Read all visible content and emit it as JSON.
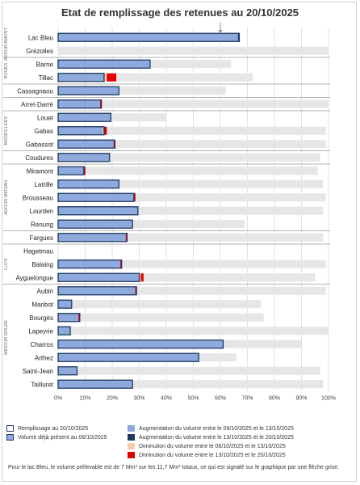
{
  "chart_data": {
    "type": "bar",
    "title": "Etat de remplissage des retenues au 20/10/2025",
    "xlim": [
      0,
      100
    ],
    "x_ticks": [
      "0%",
      "10%",
      "20%",
      "30%",
      "40%",
      "50%",
      "60%",
      "70%",
      "80%",
      "90%",
      "100%"
    ],
    "grid": "vertical",
    "legend_position": "bottom",
    "colors": {
      "present_fill": "#8ea9db",
      "outline": "#1f3864",
      "capacity": "#e6e6e6",
      "increase_1": "#8ea9db",
      "increase_2": "#1f3864",
      "decrease_1": "#f8cbad",
      "decrease_2": "#e00000"
    },
    "groups": [
      {
        "name": "ADOUR AMONT",
        "rows": [
          {
            "name": "Lac Bleu",
            "present": 66.5,
            "filling": 67,
            "capacity": 0,
            "inc1": 0,
            "inc2": 0.6,
            "dec1": 0,
            "dec2": 0
          },
          {
            "name": "Grézolles",
            "present": 0,
            "filling": 0,
            "capacity": 100,
            "inc1": 0,
            "inc2": 0,
            "dec1": 0,
            "dec2": 0
          }
        ]
      },
      {
        "name": "BOUES",
        "rows": [
          {
            "name": "Barne",
            "present": 34,
            "filling": 34,
            "capacity": 64,
            "inc1": 0,
            "inc2": 0,
            "dec1": 0,
            "dec2": 0
          },
          {
            "name": "Tillac",
            "present": 17,
            "filling": 17,
            "capacity": 72,
            "inc1": 0,
            "inc2": 0,
            "dec1": 1,
            "dec2": 3.5
          }
        ]
      },
      {
        "name": "",
        "rows": [
          {
            "name": "Cassagnaou",
            "present": 22.5,
            "filling": 22.5,
            "capacity": 62,
            "inc1": 0,
            "inc2": 0,
            "dec1": 0,
            "dec2": 0
          }
        ]
      },
      {
        "name": "",
        "rows": [
          {
            "name": "Arret-Darré",
            "present": 15.5,
            "filling": 16,
            "capacity": 100,
            "inc1": 0,
            "inc2": 0,
            "dec1": 0,
            "dec2": 0.6
          }
        ]
      },
      {
        "name": "BAÏSES-LEES",
        "rows": [
          {
            "name": "Louet",
            "present": 19.5,
            "filling": 19.5,
            "capacity": 40,
            "inc1": 0,
            "inc2": 0,
            "dec1": 0,
            "dec2": 0
          },
          {
            "name": "Gabas",
            "present": 16.5,
            "filling": 17,
            "capacity": 99,
            "inc1": 0,
            "inc2": 0,
            "dec1": 0.5,
            "dec2": 1
          },
          {
            "name": "Gabassot",
            "present": 20.5,
            "filling": 21,
            "capacity": 99,
            "inc1": 0,
            "inc2": 0,
            "dec1": 0,
            "dec2": 0.6
          }
        ]
      },
      {
        "name": "",
        "rows": [
          {
            "name": "Coudures",
            "present": 19,
            "filling": 19,
            "capacity": 97,
            "inc1": 0,
            "inc2": 0,
            "dec1": 0,
            "dec2": 0
          }
        ]
      },
      {
        "name": "ADOUR MEDIAN",
        "rows": [
          {
            "name": "Miramont",
            "present": 9.5,
            "filling": 9.5,
            "capacity": 96,
            "inc1": 0,
            "inc2": 0,
            "dec1": 0,
            "dec2": 0.6
          },
          {
            "name": "Latrille",
            "present": 22.5,
            "filling": 22.5,
            "capacity": 98,
            "inc1": 0,
            "inc2": 0,
            "dec1": 0,
            "dec2": 0
          },
          {
            "name": "Brousseau",
            "present": 28,
            "filling": 28,
            "capacity": 99,
            "inc1": 0,
            "inc2": 0,
            "dec1": 0,
            "dec2": 0.6
          },
          {
            "name": "Lourden",
            "present": 29.5,
            "filling": 29.5,
            "capacity": 98,
            "inc1": 0,
            "inc2": 0,
            "dec1": 0,
            "dec2": 0
          },
          {
            "name": "Renung",
            "present": 27.5,
            "filling": 27.5,
            "capacity": 69,
            "inc1": 0,
            "inc2": 0,
            "dec1": 0,
            "dec2": 0
          }
        ]
      },
      {
        "name": "",
        "rows": [
          {
            "name": "Fargues",
            "present": 25,
            "filling": 25.5,
            "capacity": 98,
            "inc1": 0,
            "inc2": 0,
            "dec1": 0,
            "dec2": 0.6
          }
        ]
      },
      {
        "name": "LUYS",
        "rows": [
          {
            "name": "Hagetmau",
            "present": 0,
            "filling": 0,
            "capacity": 0,
            "inc1": 0,
            "inc2": 0,
            "dec1": 0,
            "dec2": 0
          },
          {
            "name": "Balaing",
            "present": 23,
            "filling": 23.5,
            "capacity": 99,
            "inc1": 0,
            "inc2": 0,
            "dec1": 0,
            "dec2": 0.6
          },
          {
            "name": "Ayguelongue",
            "present": 30,
            "filling": 30,
            "capacity": 95,
            "inc1": 0,
            "inc2": 0,
            "dec1": 0.6,
            "dec2": 1
          }
        ]
      },
      {
        "name": "MIDOUR DOUZE",
        "rows": [
          {
            "name": "Aubin",
            "present": 28.5,
            "filling": 29,
            "capacity": 99,
            "inc1": 0,
            "inc2": 0,
            "dec1": 0,
            "dec2": 0.6
          },
          {
            "name": "Maribot",
            "present": 5,
            "filling": 5,
            "capacity": 75,
            "inc1": 0,
            "inc2": 0,
            "dec1": 0,
            "dec2": 0
          },
          {
            "name": "Bourgès",
            "present": 7.5,
            "filling": 8,
            "capacity": 76,
            "inc1": 0,
            "inc2": 0,
            "dec1": 0,
            "dec2": 0.6
          },
          {
            "name": "Lapeyrie",
            "present": 4.5,
            "filling": 4.5,
            "capacity": 100,
            "inc1": 0,
            "inc2": 0,
            "dec1": 0,
            "dec2": 0
          },
          {
            "name": "Charros",
            "present": 60.5,
            "filling": 61,
            "capacity": 90,
            "inc1": 0.8,
            "inc2": 0,
            "dec1": 0,
            "dec2": 0
          },
          {
            "name": "Arthez",
            "present": 52,
            "filling": 52,
            "capacity": 66,
            "inc1": 0,
            "inc2": 0,
            "dec1": 0,
            "dec2": 0
          },
          {
            "name": "Saint-Jean",
            "present": 7,
            "filling": 7,
            "capacity": 97,
            "inc1": 0,
            "inc2": 0,
            "dec1": 0,
            "dec2": 0
          },
          {
            "name": "Tailluret",
            "present": 27.5,
            "filling": 27.5,
            "capacity": 98,
            "inc1": 0,
            "inc2": 0,
            "dec1": 0,
            "dec2": 0
          }
        ]
      }
    ],
    "arrow_marker": {
      "row": "Lac Bleu",
      "value": 60
    }
  },
  "legend": {
    "filling": "Remplissage au 20/10/2025",
    "present": "Volume déjà présent au 06/10/2025",
    "inc1": "Augmentation du volume entre le 06/10/2025 et le 13/10/2025",
    "inc2": "Augmentation du volume entre le 13/10/2025 et le 20/10/2025",
    "dec1": "Diminution du volume entre le 06/10/2025 et le 13/10/2025",
    "dec2": "Diminution du volume entre le 13/10/2025 et le 20/10/2025"
  },
  "footnote": "Pour le lac Bleu, le volume prélevable est de 7 Mm³ sur les 11,7 Mm³ totaux, ce qui est signalé sur le graphique par une flèche grise."
}
